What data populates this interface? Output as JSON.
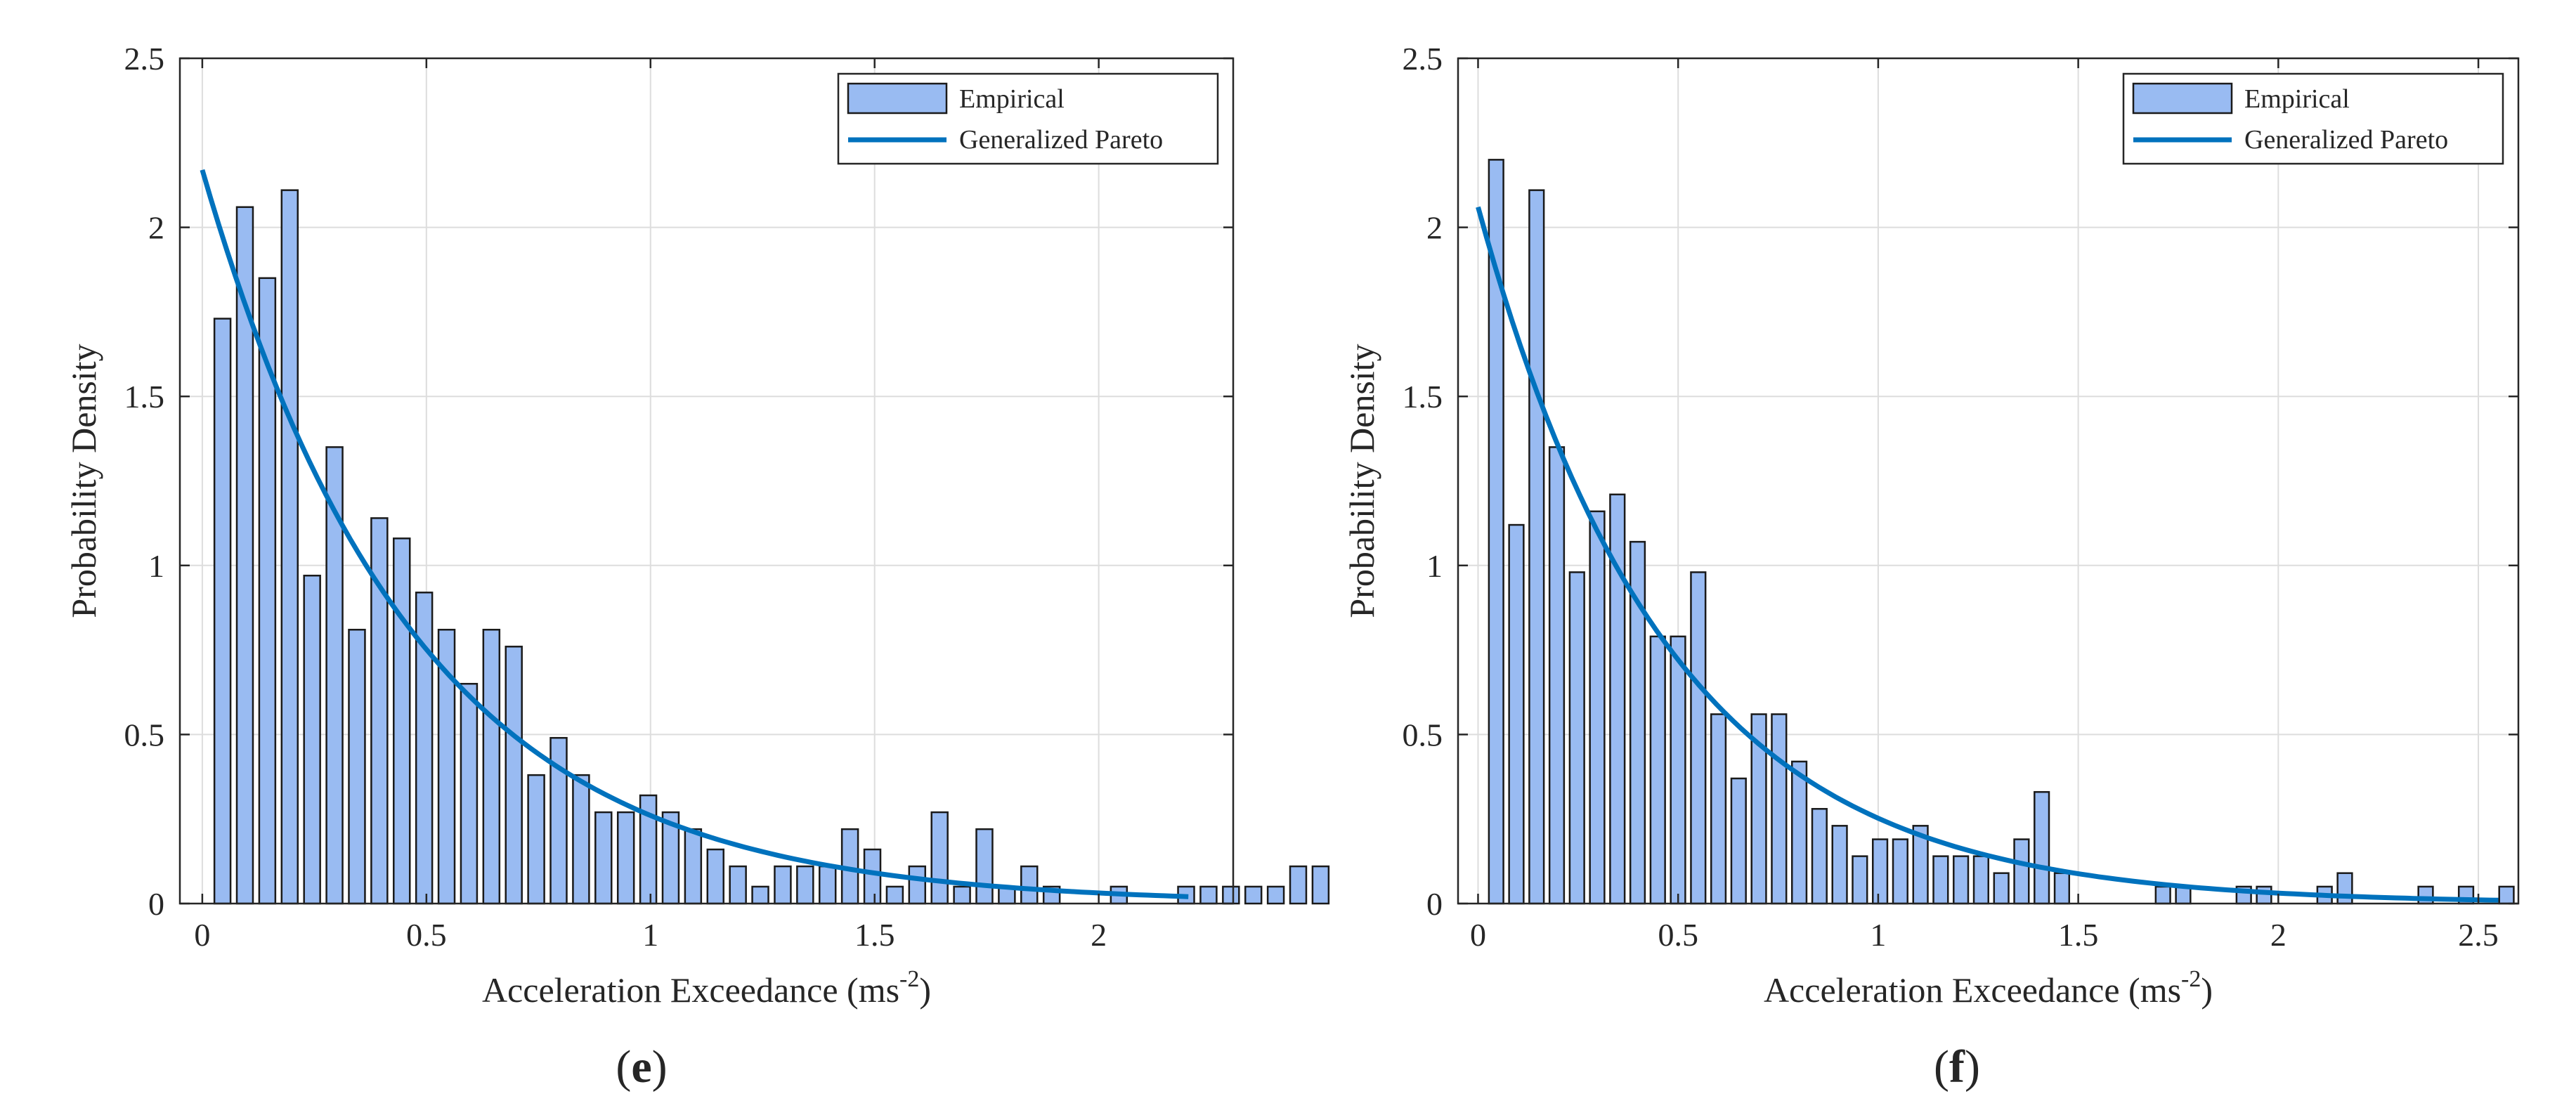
{
  "colors": {
    "bar_fill": "#99bbf2",
    "bar_edge": "#1a1a1a",
    "curve": "#0072bd",
    "grid": "#dddddd",
    "axis": "#262626"
  },
  "chart_data": [
    {
      "id": "e",
      "type": "bar",
      "caption_letter": "e",
      "xlabel": "Acceleration Exceedance (ms",
      "xlabel_sup": "-2",
      "xlabel_close": ")",
      "ylabel": "Probability Density",
      "xlim": [
        -0.05,
        2.3
      ],
      "ylim": [
        0,
        2.5
      ],
      "xticks": [
        0,
        0.5,
        1,
        1.5,
        2
      ],
      "xtick_labels": [
        "0",
        "0.5",
        "1",
        "1.5",
        "2"
      ],
      "yticks": [
        0,
        0.5,
        1,
        1.5,
        2,
        2.5
      ],
      "ytick_labels": [
        "0",
        "0.5",
        "1",
        "1.5",
        "2",
        "2.5"
      ],
      "grid": true,
      "legend_location": "top-right",
      "series": [
        {
          "name": "Empirical",
          "kind": "histogram",
          "bin_start": 0.02,
          "bin_width": 0.05,
          "values": [
            1.73,
            2.06,
            1.85,
            2.11,
            0.97,
            1.35,
            0.81,
            1.14,
            1.08,
            0.92,
            0.81,
            0.65,
            0.81,
            0.76,
            0.38,
            0.49,
            0.38,
            0.27,
            0.27,
            0.32,
            0.27,
            0.22,
            0.16,
            0.11,
            0.05,
            0.11,
            0.11,
            0.11,
            0.22,
            0.16,
            0.05,
            0.11,
            0.27,
            0.05,
            0.22,
            0.05,
            0.11,
            0.05,
            0,
            0,
            0.05,
            0,
            0,
            0.05,
            0.05,
            0.05,
            0.05,
            0.05,
            0.11,
            0.11
          ]
        },
        {
          "name": "Generalized Pareto",
          "kind": "curve",
          "y0": 2.17,
          "decay": 2.12,
          "x_start": 0,
          "x_end": 2.2
        }
      ]
    },
    {
      "id": "f",
      "type": "bar",
      "caption_letter": "f",
      "xlabel": "Acceleration Exceedance (ms",
      "xlabel_sup": "-2",
      "xlabel_close": ")",
      "ylabel": "Probability Density",
      "xlim": [
        -0.05,
        2.6
      ],
      "ylim": [
        0,
        2.5
      ],
      "xticks": [
        0,
        0.5,
        1,
        1.5,
        2,
        2.5
      ],
      "xtick_labels": [
        "0",
        "0.5",
        "1",
        "1.5",
        "2",
        "2.5"
      ],
      "yticks": [
        0,
        0.5,
        1,
        1.5,
        2,
        2.5
      ],
      "ytick_labels": [
        "0",
        "0.5",
        "1",
        "1.5",
        "2",
        "2.5"
      ],
      "grid": true,
      "legend_location": "top-right",
      "series": [
        {
          "name": "Empirical",
          "kind": "histogram",
          "bin_start": 0.02,
          "bin_width": 0.0505,
          "values": [
            2.2,
            1.12,
            2.11,
            1.35,
            0.98,
            1.16,
            1.21,
            1.07,
            0.79,
            0.79,
            0.98,
            0.56,
            0.37,
            0.56,
            0.56,
            0.42,
            0.28,
            0.23,
            0.14,
            0.19,
            0.19,
            0.23,
            0.14,
            0.14,
            0.14,
            0.09,
            0.19,
            0.33,
            0.09,
            0,
            0,
            0,
            0,
            0.05,
            0.05,
            0,
            0,
            0.05,
            0.05,
            0,
            0,
            0.05,
            0.09,
            0,
            0,
            0,
            0.05,
            0,
            0.05,
            0,
            0.05
          ]
        },
        {
          "name": "Generalized Pareto",
          "kind": "curve",
          "y0": 2.06,
          "decay": 2.1,
          "x_start": 0,
          "x_end": 2.55
        }
      ]
    }
  ]
}
